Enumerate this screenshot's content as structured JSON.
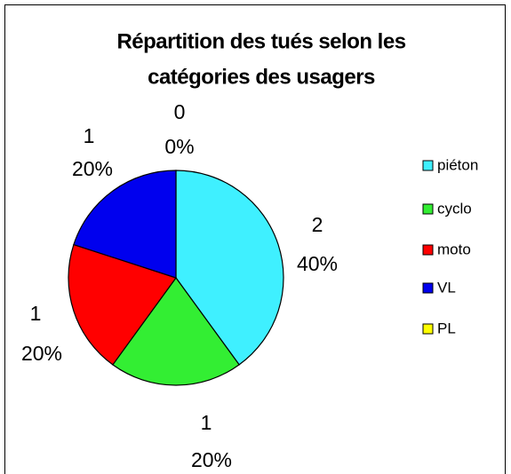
{
  "chart_data": {
    "type": "pie",
    "title": [
      "Répartition des tués selon les",
      "catégories des usagers"
    ],
    "categories": [
      "piéton",
      "cyclo",
      "moto",
      "VL",
      "PL"
    ],
    "values": [
      2,
      1,
      1,
      1,
      0
    ],
    "percent_labels": [
      "40%",
      "20%",
      "20%",
      "20%",
      "0%"
    ],
    "colors": [
      "#3ff0ff",
      "#33ee33",
      "#ff0000",
      "#0000ee",
      "#ffff00"
    ],
    "legend": "right"
  }
}
